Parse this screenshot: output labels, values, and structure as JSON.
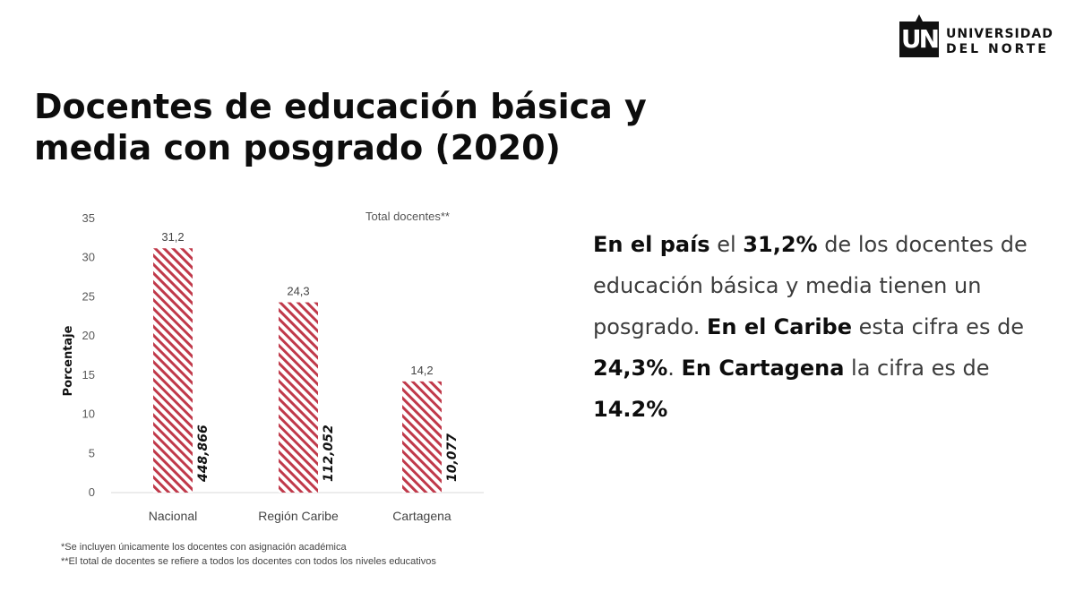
{
  "title": "Docentes de educación básica y media con posgrado (2020)",
  "logo": {
    "mark": "UN",
    "line1": "UNIVERSIDAD",
    "line2": "DEL NORTE"
  },
  "chart_data": {
    "type": "bar",
    "categories": [
      "Nacional",
      "Región Caribe",
      "Cartagena"
    ],
    "values": [
      31.2,
      24.3,
      14.2
    ],
    "value_labels": [
      "31,2",
      "24,3",
      "14,2"
    ],
    "total_docentes": [
      "448,866",
      "112,052",
      "10,077"
    ],
    "annotation": "Total docentes**",
    "ylabel": "Porcentaje",
    "xlabel": "",
    "ylim": [
      0,
      35
    ],
    "yticks": [
      0,
      5,
      10,
      15,
      20,
      25,
      30,
      35
    ],
    "bar_color": "#c0394a",
    "grid": false,
    "legend": "none"
  },
  "description": {
    "p1_bold": "En el país",
    "p2": " el ",
    "p3_bold": "31,2%",
    "p4": " de los docentes de educación básica y media tienen un posgrado. ",
    "p5_bold": "En el Caribe",
    "p6": " esta cifra es de ",
    "p7_bold": "24,3%",
    "p8": ". ",
    "p9_bold": "En Cartagena",
    "p10": " la cifra es de ",
    "p11_bold": "14.2%"
  },
  "footnotes": [
    "*Se incluyen únicamente los docentes con asignación académica",
    "**El total de docentes se refiere a todos los docentes con todos los niveles educativos"
  ]
}
